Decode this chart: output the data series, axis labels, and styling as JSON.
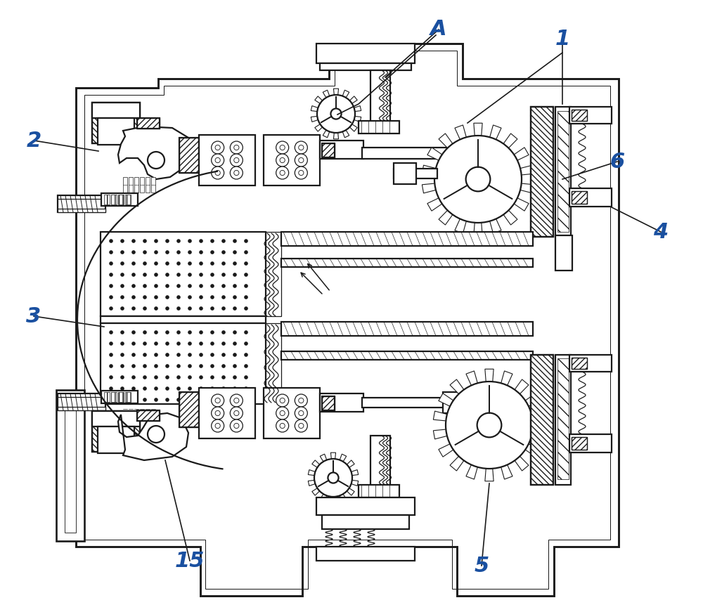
{
  "bg_color": "#ffffff",
  "line_color": "#1a1a1a",
  "label_color": "#1a50a0",
  "lw_main": 1.6,
  "lw_thin": 0.9,
  "label_fontsize": 22,
  "figw": 10.0,
  "figh": 8.71
}
